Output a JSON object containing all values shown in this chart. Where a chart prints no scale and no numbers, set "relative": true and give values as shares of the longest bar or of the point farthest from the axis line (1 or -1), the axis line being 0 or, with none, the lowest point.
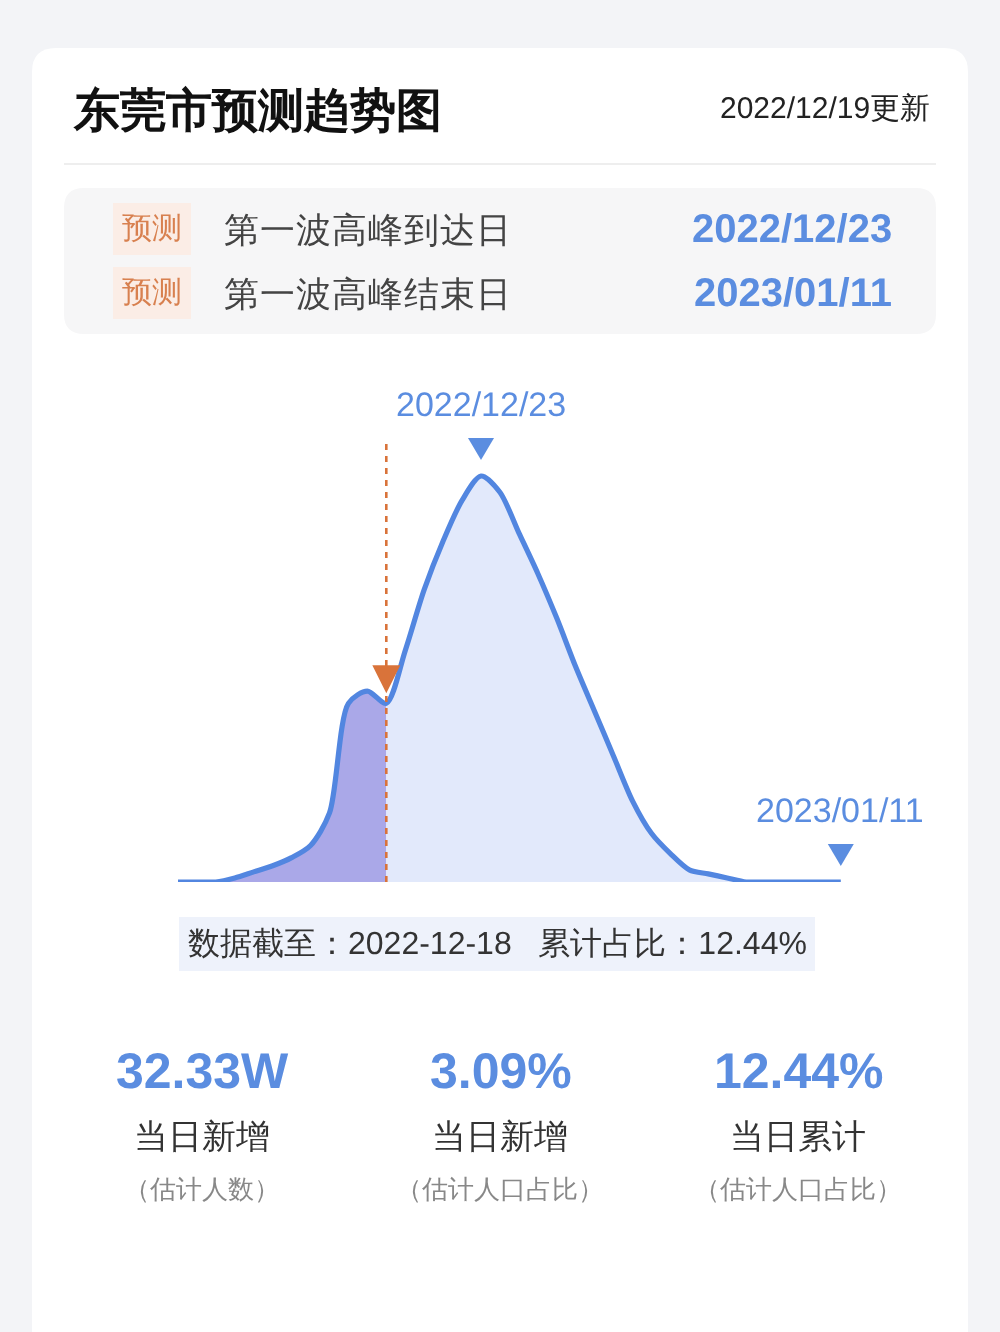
{
  "chart_data": {
    "type": "area",
    "title": "东莞市预测趋势图",
    "subtitle": "2022/12/19更新",
    "relative": true,
    "categories": [
      null,
      null,
      null,
      null,
      null,
      null,
      null,
      null,
      null,
      null,
      null,
      null,
      null,
      null,
      null,
      null,
      null,
      null,
      null,
      null,
      null,
      null,
      null,
      null,
      null,
      null,
      null,
      null,
      null,
      null,
      null,
      null,
      null,
      null,
      null,
      null
    ],
    "series": [
      {
        "color": "#aaa8e8",
        "values": [
          0,
          0,
          0,
          0.01,
          0.025,
          0.04,
          0.06,
          0.09,
          0.17,
          0.44,
          0.47,
          0.44,
          null,
          null,
          null,
          null,
          null,
          null,
          null,
          null,
          null,
          null,
          null,
          null,
          null,
          null,
          null,
          null,
          null,
          null,
          null,
          null,
          null,
          null,
          null,
          null
        ]
      },
      {
        "color": "#e2e9fb",
        "values": [
          null,
          null,
          null,
          null,
          null,
          null,
          null,
          null,
          null,
          null,
          null,
          0.44,
          0.57,
          0.72,
          0.84,
          0.94,
          1,
          0.96,
          0.86,
          0.76,
          0.65,
          0.53,
          0.42,
          0.31,
          0.2,
          0.12,
          0.07,
          0.03,
          0.02,
          0.01,
          0,
          0,
          0,
          0,
          0,
          0
        ]
      },
      {
        "type": "line",
        "color": "#5286e0",
        "values": [
          0,
          0,
          0,
          0.01,
          0.025,
          0.04,
          0.06,
          0.09,
          0.17,
          0.44,
          0.47,
          0.44,
          0.57,
          0.72,
          0.84,
          0.94,
          1,
          0.96,
          0.86,
          0.76,
          0.65,
          0.53,
          0.42,
          0.31,
          0.2,
          0.12,
          0.07,
          0.03,
          0.02,
          0.01,
          0,
          0,
          0,
          0,
          0,
          0
        ]
      }
    ],
    "annotations": [
      {
        "text": "2022/12/23",
        "y": 1
      },
      {
        "text": "2023/01/11",
        "y": 0
      },
      "预测",
      "第一波高峰到达日",
      "2022/12/23",
      "预测",
      "第一波高峰结束日",
      "2023/01/11",
      "数据截至：2022-12-18   累计占比：12.44%",
      "32.33W",
      "当日新增",
      "（估计人数）",
      "3.09%",
      "当日新增",
      "（估计人口占比）",
      "12.44%",
      "当日累计",
      "（估计人口占比）"
    ]
  }
}
